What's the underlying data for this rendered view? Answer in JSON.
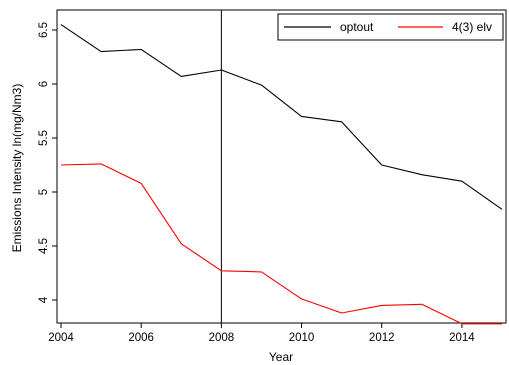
{
  "chart_data": {
    "type": "line",
    "xlabel": "Year",
    "ylabel": "Emissions Intensity ln(mg/Nm3)",
    "xlim": [
      2004,
      2015
    ],
    "ylim": [
      3.8,
      6.6
    ],
    "x_ticks": [
      "2004",
      "2006",
      "2008",
      "2010",
      "2012",
      "2014"
    ],
    "y_ticks": [
      "4",
      "4.5",
      "5",
      "5.5",
      "6",
      "6.5"
    ],
    "x": [
      2004,
      2005,
      2006,
      2007,
      2008,
      2009,
      2010,
      2011,
      2012,
      2013,
      2014,
      2015
    ],
    "vertical_line_x": 2008,
    "grid": false,
    "legend_position": "top-right",
    "series": [
      {
        "name": "optout",
        "color": "#000000",
        "values": [
          6.55,
          6.3,
          6.32,
          6.07,
          6.13,
          5.99,
          5.7,
          5.65,
          5.25,
          5.16,
          5.1,
          4.84
        ]
      },
      {
        "name": "4(3) elv",
        "color": "#ff0000",
        "values": [
          5.25,
          5.26,
          5.08,
          4.52,
          4.27,
          4.26,
          4.01,
          3.88,
          3.95,
          3.96,
          3.78,
          3.78
        ]
      }
    ]
  }
}
